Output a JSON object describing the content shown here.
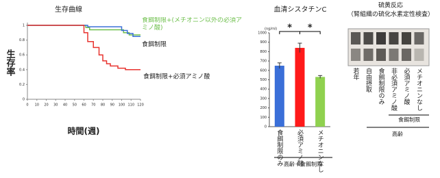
{
  "chart_data": [
    {
      "type": "line",
      "title": "生存曲線",
      "xlabel": "時間(週)",
      "ylabel": "生存率",
      "xlim": [
        0,
        120
      ],
      "ylim": [
        0,
        1
      ],
      "xticks": [
        0,
        10,
        20,
        30,
        40,
        50,
        60,
        70,
        80,
        90,
        100,
        110,
        120
      ],
      "yticks": [
        0,
        0.2,
        0.4,
        0.6,
        0.8,
        1
      ],
      "series": [
        {
          "name": "食餌制限+(メチオニン以外の必須アミノ酸)",
          "color": "#6dbf4b",
          "x": [
            0,
            62,
            62,
            66,
            66,
            102,
            102,
            108,
            108,
            120
          ],
          "values": [
            1,
            1,
            0.97,
            0.97,
            0.94,
            0.94,
            0.9,
            0.9,
            0.87,
            0.87
          ]
        },
        {
          "name": "食餌制限",
          "color": "#3a6fd8",
          "x": [
            0,
            64,
            64,
            100,
            100,
            106,
            106,
            112,
            112,
            120
          ],
          "values": [
            1,
            1,
            0.98,
            0.98,
            0.93,
            0.93,
            0.89,
            0.89,
            0.85,
            0.85
          ]
        },
        {
          "name": "食餌制限+必須アミノ酸",
          "color": "#e8322e",
          "x": [
            0,
            60,
            60,
            64,
            64,
            70,
            70,
            76,
            76,
            80,
            80,
            84,
            84,
            88,
            88,
            96,
            96,
            104,
            104,
            120
          ],
          "values": [
            1,
            1,
            0.9,
            0.9,
            0.78,
            0.78,
            0.7,
            0.7,
            0.6,
            0.6,
            0.52,
            0.52,
            0.48,
            0.48,
            0.45,
            0.45,
            0.42,
            0.42,
            0.4,
            0.4
          ]
        }
      ]
    },
    {
      "type": "bar",
      "title": "血清シスタチンC",
      "unit": "(ng/ml)",
      "categories": [
        "食餌制限のみ",
        "必須アミノ酸",
        "メチオニンなし"
      ],
      "values": [
        650,
        840,
        530
      ],
      "errors": [
        30,
        50,
        15
      ],
      "colors": [
        "#3a6fd8",
        "#ff1a1a",
        "#8fd14f"
      ],
      "ylim": [
        0,
        1000
      ],
      "yticks": [
        0,
        100,
        200,
        300,
        400,
        500,
        600,
        700,
        800,
        900,
        1000
      ],
      "annotations": [
        "*",
        "*"
      ],
      "group_label": "高齢＋食餌制限"
    }
  ],
  "assay_panel": {
    "title": "硫黄反応",
    "subtitle": "（腎組織の硫化水素定性検査）",
    "columns": [
      "若年",
      "自由摂取",
      "食餌制限のみ",
      "非必須アミノ酸",
      "必須アミノ酸",
      "メチオニンなし"
    ],
    "group_labels": [
      "食餌制限",
      "高齢"
    ]
  }
}
